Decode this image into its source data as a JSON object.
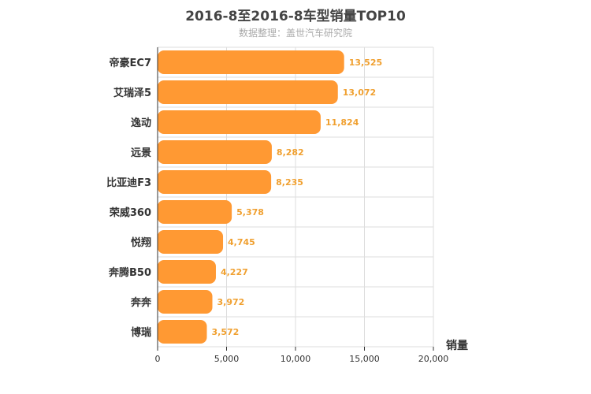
{
  "chart_data": {
    "type": "bar",
    "orientation": "horizontal",
    "title": "2016-8至2016-8车型销量TOP10",
    "subtitle": "数据整理：盖世汽车研究院",
    "categories": [
      "帝豪EC7",
      "艾瑞泽5",
      "逸动",
      "远景",
      "比亚迪F3",
      "荣威360",
      "悦翔",
      "奔腾B50",
      "奔奔",
      "博瑞"
    ],
    "values": [
      13525,
      13072,
      11824,
      8282,
      8235,
      5378,
      4745,
      4227,
      3972,
      3572
    ],
    "value_labels": [
      "13,525",
      "13,072",
      "11,824",
      "8,282",
      "8,235",
      "5,378",
      "4,745",
      "4,227",
      "3,972",
      "3,572"
    ],
    "xlabel": "销量",
    "xlim": [
      0,
      20000
    ],
    "xticks": [
      0,
      5000,
      10000,
      15000,
      20000
    ],
    "xtick_labels": [
      "0",
      "5,000",
      "10,000",
      "15,000",
      "20,000"
    ],
    "grid": true,
    "colors": {
      "bar": "#ff9933",
      "value_label": "#f0a030"
    }
  }
}
